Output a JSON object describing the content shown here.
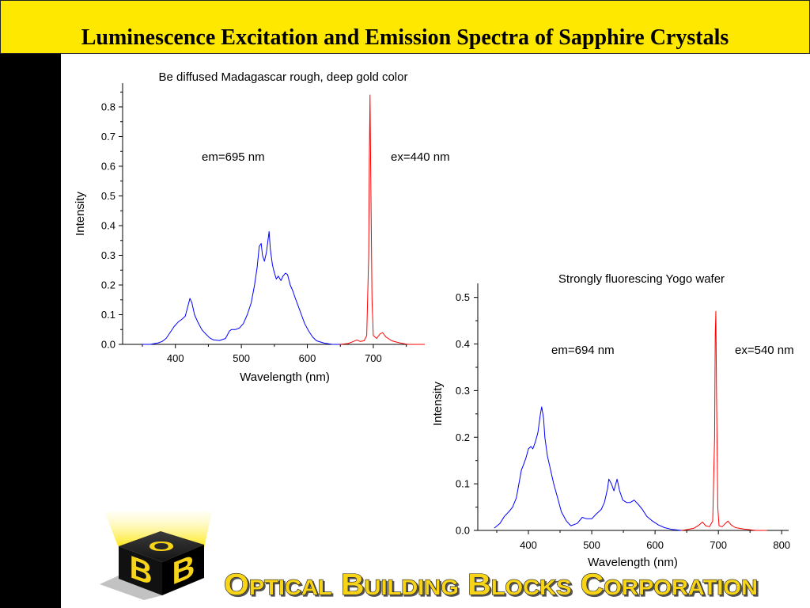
{
  "slide": {
    "title": "Luminescence Excitation and Emission Spectra of Sapphire Crystals"
  },
  "theme": {
    "title_bar": "#FFE800",
    "side_bar": "#000000",
    "brand_yellow": "#F7D417"
  },
  "chart_data": [
    {
      "type": "line",
      "title": "Be diffused Madagascar rough, deep gold color",
      "xlabel": "Wavelength (nm)",
      "ylabel": "Intensity",
      "xlim": [
        320,
        778
      ],
      "ylim": [
        0,
        0.88
      ],
      "xticks": [
        400,
        500,
        600,
        700
      ],
      "yticks": [
        "0.0",
        "0.1",
        "0.2",
        "0.3",
        "0.4",
        "0.5",
        "0.6",
        "0.7",
        "0.8"
      ],
      "grid": false,
      "series": [
        {
          "name": "em=695 nm",
          "color": "#0000FF",
          "x": [
            350,
            362,
            374,
            380,
            386,
            392,
            398,
            404,
            410,
            415,
            418,
            422,
            425,
            429,
            434,
            440,
            446,
            452,
            458,
            467,
            476,
            482,
            485,
            491,
            497,
            503,
            509,
            515,
            520,
            524,
            527,
            530,
            532,
            535,
            538,
            542,
            544,
            547,
            549,
            553,
            556,
            560,
            563,
            567,
            570,
            574,
            578,
            581,
            586,
            591,
            596,
            602,
            608,
            614,
            626,
            638,
            650
          ],
          "y": [
            0,
            0,
            0.005,
            0.01,
            0.02,
            0.04,
            0.06,
            0.075,
            0.085,
            0.095,
            0.12,
            0.155,
            0.14,
            0.1,
            0.075,
            0.05,
            0.035,
            0.022,
            0.015,
            0.013,
            0.02,
            0.045,
            0.05,
            0.05,
            0.055,
            0.07,
            0.1,
            0.14,
            0.2,
            0.26,
            0.33,
            0.34,
            0.3,
            0.28,
            0.31,
            0.38,
            0.32,
            0.27,
            0.25,
            0.22,
            0.23,
            0.215,
            0.23,
            0.24,
            0.235,
            0.2,
            0.18,
            0.16,
            0.13,
            0.1,
            0.07,
            0.045,
            0.025,
            0.012,
            0.004,
            0,
            0
          ]
        },
        {
          "name": "ex=440 nm",
          "color": "#FF0000",
          "x": [
            650,
            662,
            670,
            675,
            680,
            686,
            690,
            693,
            694,
            695,
            696,
            698,
            700,
            705,
            710,
            714,
            719,
            728,
            740,
            752,
            778
          ],
          "y": [
            0,
            0.003,
            0.01,
            0.015,
            0.01,
            0.012,
            0.03,
            0.3,
            0.62,
            0.84,
            0.6,
            0.15,
            0.03,
            0.02,
            0.035,
            0.04,
            0.025,
            0.012,
            0.005,
            0,
            0
          ]
        }
      ]
    },
    {
      "type": "line",
      "title": "Strongly fluorescing Yogo wafer",
      "xlabel": "Wavelength (nm)",
      "ylabel": "Intensity",
      "xlim": [
        320,
        811
      ],
      "ylim": [
        0,
        0.53
      ],
      "xticks": [
        400,
        500,
        600,
        700,
        800
      ],
      "yticks": [
        "0.0",
        "0.1",
        "0.2",
        "0.3",
        "0.4",
        "0.5"
      ],
      "grid": false,
      "series": [
        {
          "name": "em=694 nm",
          "color": "#0000FF",
          "x": [
            346,
            355,
            362,
            369,
            375,
            381,
            385,
            389,
            392,
            396,
            400,
            404,
            407,
            411,
            415,
            419,
            421,
            424,
            426,
            430,
            435,
            440,
            446,
            452,
            460,
            467,
            477,
            485,
            492,
            500,
            507,
            515,
            520,
            525,
            527,
            531,
            535,
            537,
            540,
            544,
            549,
            555,
            561,
            567,
            574,
            580,
            587,
            596,
            605,
            615,
            627,
            642
          ],
          "y": [
            0.005,
            0.015,
            0.03,
            0.04,
            0.05,
            0.07,
            0.1,
            0.13,
            0.14,
            0.155,
            0.175,
            0.18,
            0.175,
            0.19,
            0.21,
            0.25,
            0.265,
            0.24,
            0.2,
            0.16,
            0.13,
            0.1,
            0.07,
            0.04,
            0.02,
            0.01,
            0.015,
            0.028,
            0.025,
            0.025,
            0.035,
            0.045,
            0.06,
            0.09,
            0.11,
            0.1,
            0.085,
            0.095,
            0.11,
            0.085,
            0.065,
            0.06,
            0.06,
            0.065,
            0.055,
            0.045,
            0.03,
            0.02,
            0.012,
            0.006,
            0.002,
            0
          ]
        },
        {
          "name": "ex=540 nm",
          "color": "#FF0000",
          "x": [
            642,
            652,
            662,
            670,
            675,
            680,
            686,
            691,
            694,
            695,
            696,
            697,
            699,
            701,
            706,
            711,
            715,
            720,
            727,
            740,
            759,
            777
          ],
          "y": [
            0,
            0.002,
            0.005,
            0.012,
            0.018,
            0.01,
            0.008,
            0.02,
            0.2,
            0.42,
            0.47,
            0.3,
            0.05,
            0.01,
            0.008,
            0.015,
            0.02,
            0.012,
            0.006,
            0.003,
            0,
            0
          ]
        }
      ]
    }
  ],
  "logo": {
    "letters": [
      "B",
      "O",
      "B"
    ]
  },
  "company": {
    "name": "Optical Building Blocks Corporation"
  }
}
